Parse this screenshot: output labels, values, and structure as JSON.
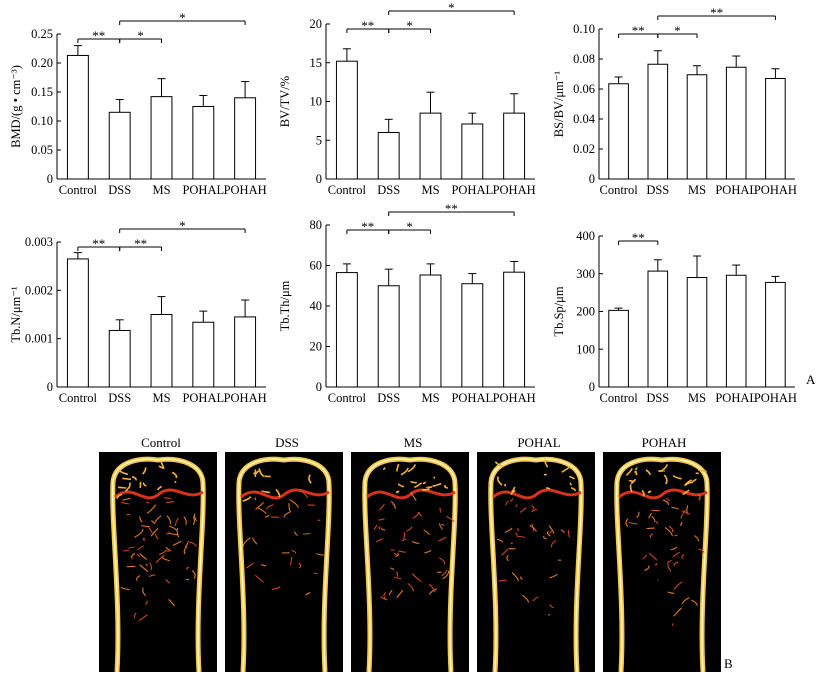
{
  "chart_data": [
    {
      "type": "bar",
      "ylabel": "BMD/(g • cm⁻³)",
      "categories": [
        "Control",
        "DSS",
        "MS",
        "POHAL",
        "POHAH"
      ],
      "values": [
        0.213,
        0.115,
        0.142,
        0.125,
        0.14
      ],
      "errors": [
        0.017,
        0.022,
        0.031,
        0.019,
        0.028
      ],
      "ylim": [
        0,
        0.25
      ],
      "yticks": [
        0,
        0.05,
        0.1,
        0.15,
        0.2,
        0.25
      ],
      "ytick_labels": [
        "0",
        "0.05",
        "0.10",
        "0.15",
        "0.20",
        "0.25"
      ],
      "significance": [
        {
          "from": 0,
          "to": 1,
          "label": "**",
          "level": 1
        },
        {
          "from": 1,
          "to": 2,
          "label": "*",
          "level": 1
        },
        {
          "from": 1,
          "to": 4,
          "label": "*",
          "level": 2
        }
      ]
    },
    {
      "type": "bar",
      "ylabel": "BV/TV/%",
      "categories": [
        "Control",
        "DSS",
        "MS",
        "POHAL",
        "POHAH"
      ],
      "values": [
        15.2,
        6.0,
        8.5,
        7.1,
        8.5
      ],
      "errors": [
        1.6,
        1.7,
        2.7,
        1.4,
        2.5
      ],
      "ylim": [
        0,
        20
      ],
      "yticks": [
        0,
        5,
        10,
        15,
        20
      ],
      "ytick_labels": [
        "0",
        "5",
        "10",
        "15",
        "20"
      ],
      "significance": [
        {
          "from": 0,
          "to": 1,
          "label": "**",
          "level": 1
        },
        {
          "from": 1,
          "to": 2,
          "label": "*",
          "level": 1
        },
        {
          "from": 1,
          "to": 4,
          "label": "*",
          "level": 2
        }
      ]
    },
    {
      "type": "bar",
      "ylabel": "BS/BV/μm⁻¹",
      "categories": [
        "Control",
        "DSS",
        "MS",
        "POHAL",
        "POHAH"
      ],
      "values": [
        0.0635,
        0.0765,
        0.0695,
        0.0745,
        0.067
      ],
      "errors": [
        0.0045,
        0.009,
        0.006,
        0.0075,
        0.0065
      ],
      "ylim": [
        0,
        0.1
      ],
      "yticks": [
        0,
        0.02,
        0.04,
        0.06,
        0.08,
        0.1
      ],
      "ytick_labels": [
        "0",
        "0.02",
        "0.04",
        "0.06",
        "0.08",
        "0.10"
      ],
      "significance": [
        {
          "from": 0,
          "to": 1,
          "label": "**",
          "level": 1
        },
        {
          "from": 1,
          "to": 2,
          "label": "*",
          "level": 1
        },
        {
          "from": 1,
          "to": 4,
          "label": "**",
          "level": 2
        }
      ]
    },
    {
      "type": "bar",
      "ylabel": "Tb.N/μm⁻¹",
      "categories": [
        "Control",
        "DSS",
        "MS",
        "POHAL",
        "POHAH"
      ],
      "values": [
        0.00265,
        0.00117,
        0.0015,
        0.00134,
        0.00145
      ],
      "errors": [
        0.00013,
        0.00022,
        0.00037,
        0.00023,
        0.00035
      ],
      "ylim": [
        0,
        0.003
      ],
      "yticks": [
        0,
        0.001,
        0.002,
        0.003
      ],
      "ytick_labels": [
        "0",
        "0.001",
        "0.002",
        "0.003"
      ],
      "significance": [
        {
          "from": 0,
          "to": 1,
          "label": "**",
          "level": 1
        },
        {
          "from": 1,
          "to": 2,
          "label": "**",
          "level": 1
        },
        {
          "from": 1,
          "to": 4,
          "label": "*",
          "level": 2
        }
      ]
    },
    {
      "type": "bar",
      "ylabel": "Tb.Th/μm",
      "categories": [
        "Control",
        "DSS",
        "MS",
        "POHAL",
        "POHAH"
      ],
      "values": [
        56.5,
        50.0,
        55.3,
        51.0,
        56.7
      ],
      "errors": [
        4.3,
        8.2,
        5.5,
        5.0,
        5.3
      ],
      "ylim": [
        0,
        80
      ],
      "yticks": [
        0,
        20,
        40,
        60,
        80
      ],
      "ytick_labels": [
        "0",
        "20",
        "40",
        "60",
        "80"
      ],
      "significance": [
        {
          "from": 0,
          "to": 1,
          "label": "**",
          "level": 1
        },
        {
          "from": 1,
          "to": 2,
          "label": "*",
          "level": 1
        },
        {
          "from": 1,
          "to": 4,
          "label": "**",
          "level": 2
        }
      ]
    },
    {
      "type": "bar",
      "ylabel": "Tb.Sp/μm",
      "categories": [
        "Control",
        "DSS",
        "MS",
        "POHAL",
        "POHAH"
      ],
      "values": [
        203,
        307,
        290,
        296,
        277
      ],
      "errors": [
        6,
        30,
        57,
        27,
        16
      ],
      "ylim": [
        0,
        400
      ],
      "yticks": [
        0,
        100,
        200,
        300,
        400
      ],
      "ytick_labels": [
        "0",
        "100",
        "200",
        "300",
        "400"
      ],
      "significance": [
        {
          "from": 0,
          "to": 1,
          "label": "**",
          "level": 1
        }
      ]
    }
  ],
  "panel_labels": {
    "a": "A",
    "b": "B"
  },
  "images": [
    {
      "label": "Control"
    },
    {
      "label": "DSS"
    },
    {
      "label": "MS"
    },
    {
      "label": "POHAL"
    },
    {
      "label": "POHAH"
    }
  ]
}
